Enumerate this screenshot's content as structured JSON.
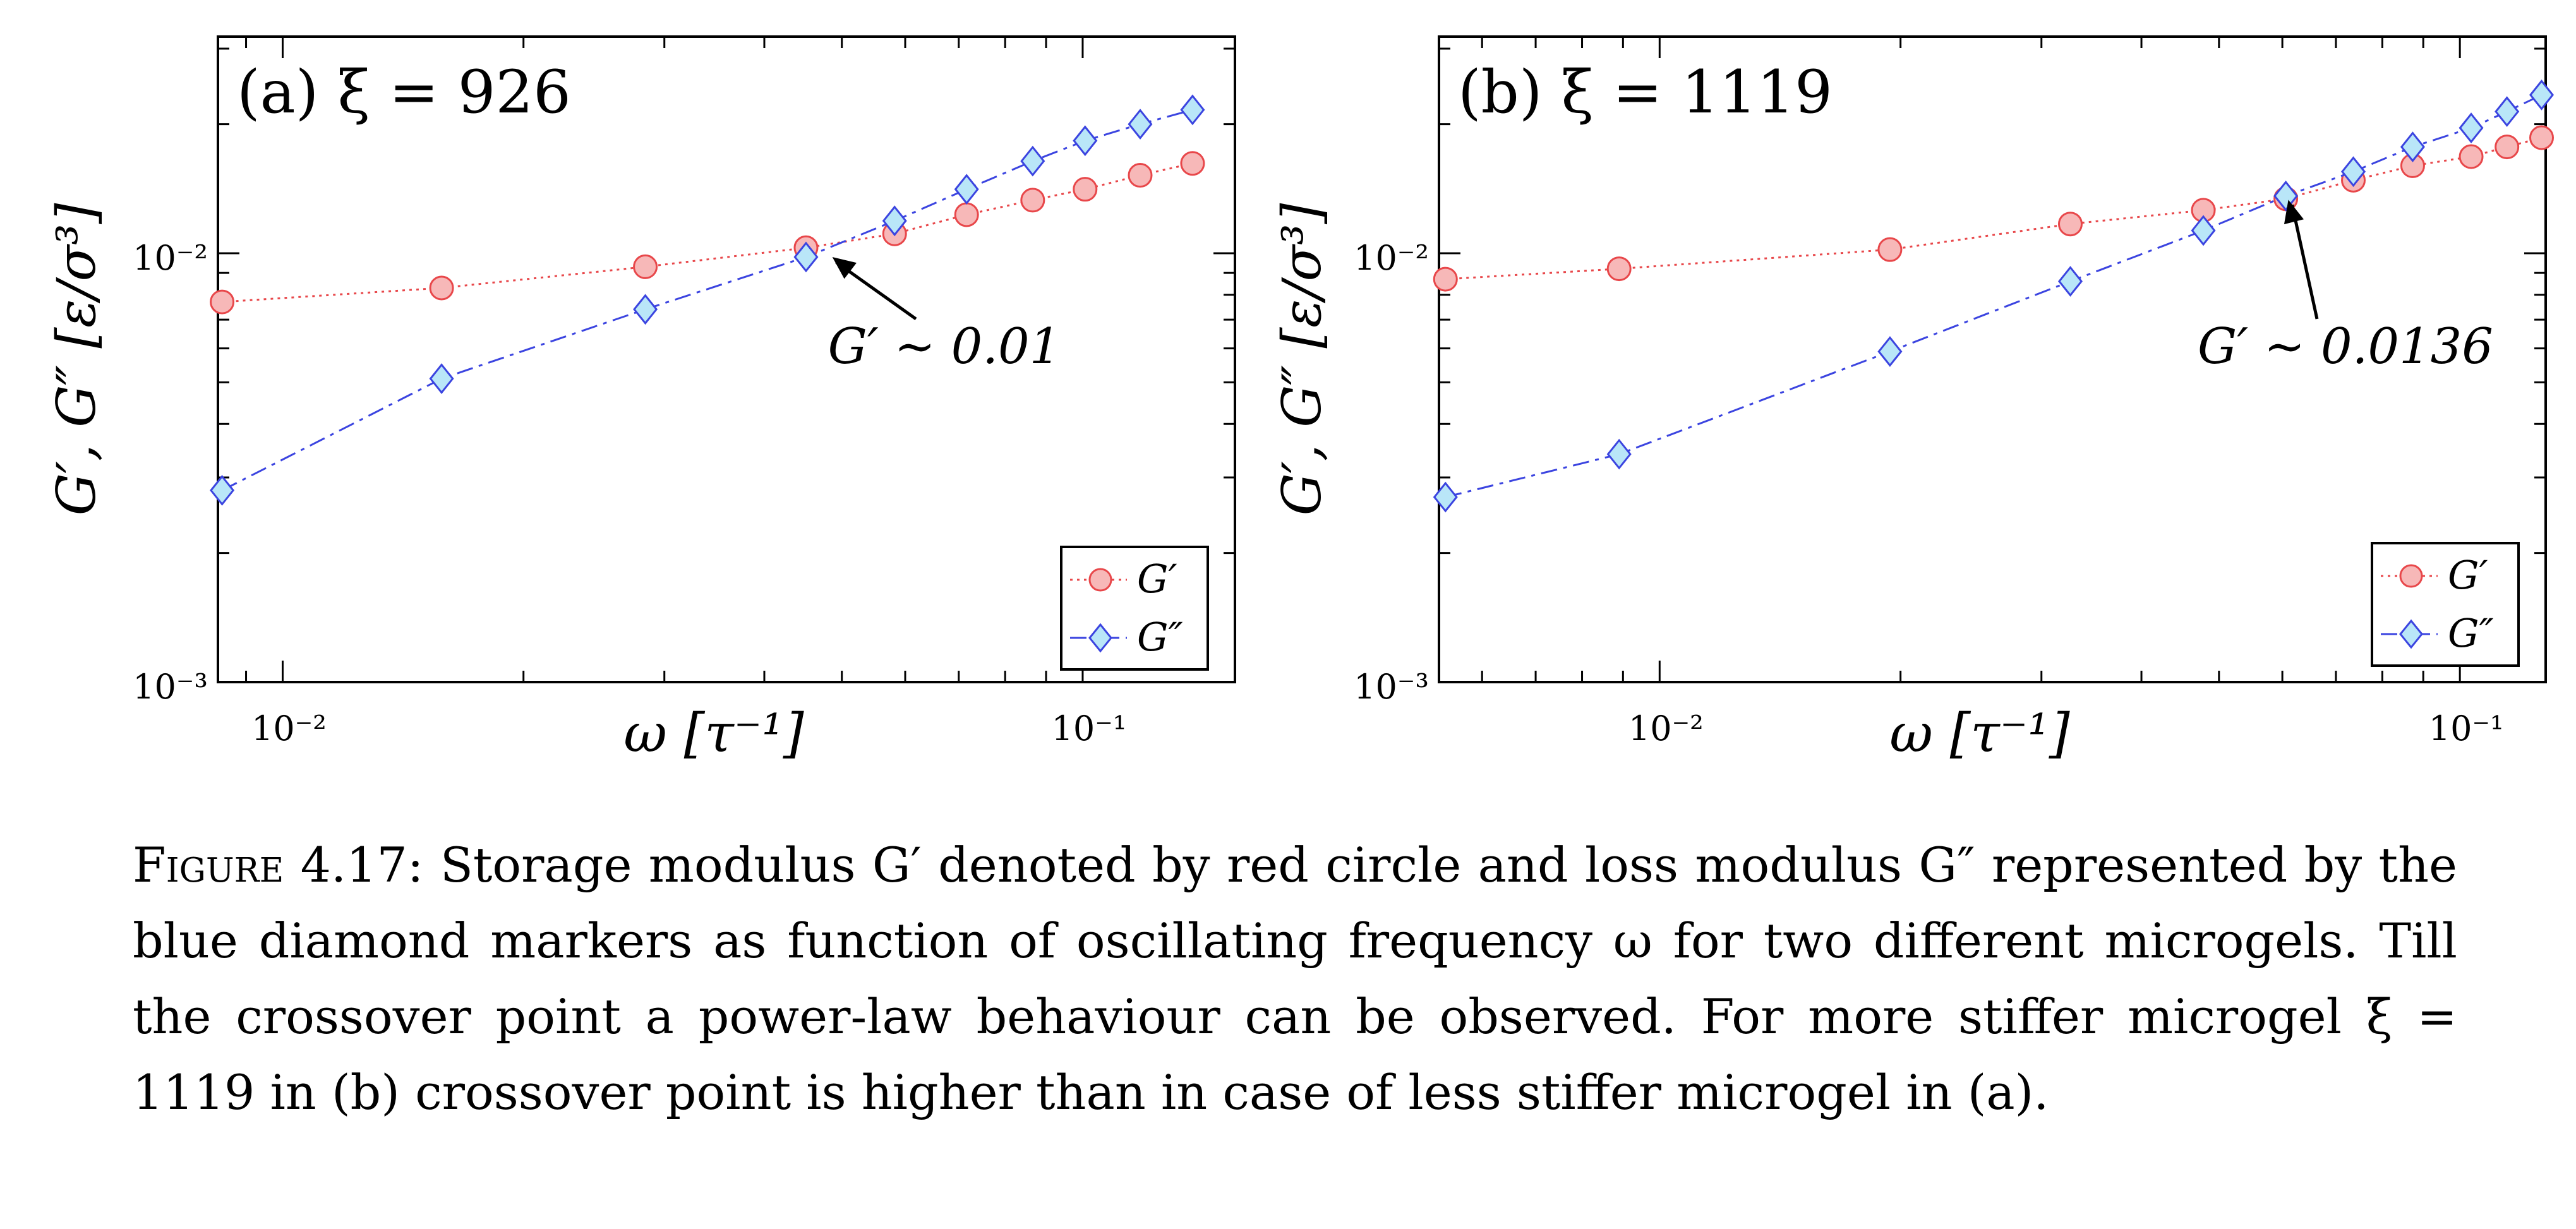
{
  "chart_data": [
    {
      "type": "scatter",
      "title": "(a)   ξ = 926",
      "xlabel": "ω [τ⁻¹]",
      "ylabel": "G′, G″ [ε/σ³]",
      "xscale": "log",
      "yscale": "log",
      "xlim": [
        0.0083,
        0.155
      ],
      "ylim": [
        0.001,
        0.032
      ],
      "xticks": [
        {
          "v": 0.01,
          "label": "10⁻²"
        },
        {
          "v": 0.1,
          "label": "10⁻¹"
        }
      ],
      "yticks": [
        {
          "v": 0.001,
          "label": "10⁻³"
        },
        {
          "v": 0.01,
          "label": "10⁻²"
        }
      ],
      "legend_position": "bottom-right",
      "series": [
        {
          "name": "G′",
          "marker": "circle",
          "line": "dotted",
          "color": "#e8474a",
          "fill": "#f7b8b8",
          "x": [
            0.0084,
            0.0158,
            0.0284,
            0.0451,
            0.0582,
            0.0716,
            0.0866,
            0.1007,
            0.118,
            0.1372
          ],
          "y": [
            0.0077,
            0.0083,
            0.0093,
            0.0103,
            0.0111,
            0.0123,
            0.0133,
            0.0141,
            0.0152,
            0.0162
          ]
        },
        {
          "name": "G″",
          "marker": "diamond",
          "line": "dashdot",
          "color": "#3b44e0",
          "fill": "#b9e6f8",
          "x": [
            0.0084,
            0.0158,
            0.0284,
            0.0451,
            0.0582,
            0.0716,
            0.0866,
            0.1007,
            0.118,
            0.1372
          ],
          "y": [
            0.0028,
            0.0051,
            0.0074,
            0.0098,
            0.0119,
            0.0141,
            0.0164,
            0.0183,
            0.02,
            0.0216
          ]
        }
      ],
      "annotation": {
        "text": "G′ ∼ 0.01",
        "x": 0.0483,
        "y": 0.01
      }
    },
    {
      "type": "scatter",
      "title": "(b)   ξ = 1119",
      "xlabel": "ω [τ⁻¹]",
      "ylabel": "G′, G″ [ε/σ³]",
      "xscale": "log",
      "yscale": "log",
      "xlim": [
        0.0053,
        0.128
      ],
      "ylim": [
        0.001,
        0.032
      ],
      "xticks": [
        {
          "v": 0.01,
          "label": "10⁻²"
        },
        {
          "v": 0.1,
          "label": "10⁻¹"
        }
      ],
      "yticks": [
        {
          "v": 0.001,
          "label": "10⁻³"
        },
        {
          "v": 0.01,
          "label": "10⁻²"
        }
      ],
      "legend_position": "bottom-right",
      "series": [
        {
          "name": "G′",
          "marker": "circle",
          "line": "dotted",
          "color": "#e8474a",
          "fill": "#f7b8b8",
          "x": [
            0.0054,
            0.0089,
            0.0194,
            0.0326,
            0.0478,
            0.0606,
            0.0736,
            0.0873,
            0.1033,
            0.1145,
            0.1265
          ],
          "y": [
            0.0087,
            0.0092,
            0.0102,
            0.0117,
            0.0126,
            0.0134,
            0.0148,
            0.016,
            0.0168,
            0.0177,
            0.0186
          ]
        },
        {
          "name": "G″",
          "marker": "diamond",
          "line": "dashdot",
          "color": "#3b44e0",
          "fill": "#b9e6f8",
          "x": [
            0.0054,
            0.0089,
            0.0194,
            0.0326,
            0.0478,
            0.0606,
            0.0736,
            0.0873,
            0.1033,
            0.1145,
            0.1265
          ],
          "y": [
            0.0027,
            0.0034,
            0.0059,
            0.0086,
            0.0113,
            0.0136,
            0.0155,
            0.0177,
            0.0196,
            0.0214,
            0.0234
          ]
        }
      ],
      "annotation": {
        "text": "G′ ∼ 0.0136",
        "x": 0.0606,
        "y": 0.0136
      }
    }
  ],
  "caption": {
    "label": "Figure 4.17:",
    "text": "Storage modulus G′ denoted by red circle and loss modulus G″ represented by the blue diamond markers as function of oscillating frequency ω for two different microgels. Till the crossover point a power-law behaviour can be observed. For more stiffer microgel ξ = 1119 in (b) crossover point is higher than in case of less stiffer microgel in (a)."
  }
}
